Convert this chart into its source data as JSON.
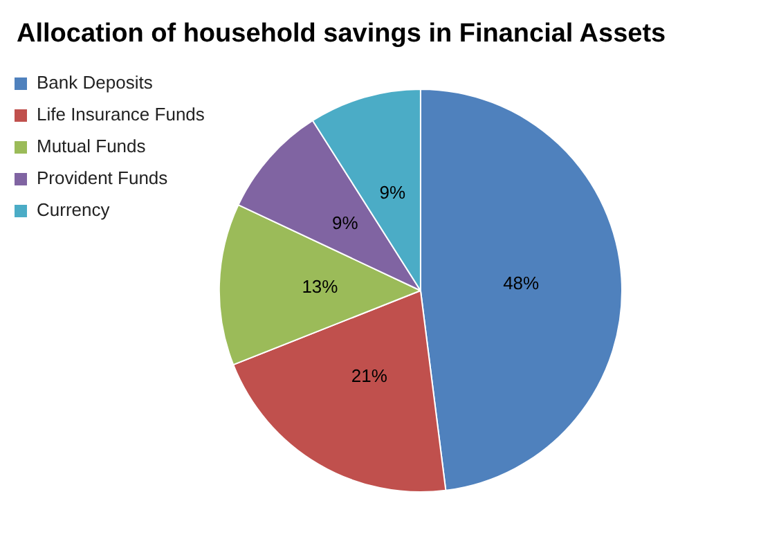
{
  "chart_data": {
    "type": "pie",
    "title": "Allocation of household savings in Financial Assets",
    "categories": [
      "Bank Deposits",
      "Life Insurance Funds",
      "Mutual Funds",
      "Provident Funds",
      "Currency"
    ],
    "values": [
      48,
      21,
      13,
      9,
      9
    ],
    "colors": [
      "#4f81bd",
      "#c0504d",
      "#9bbb59",
      "#8064a2",
      "#4bacc6"
    ],
    "value_labels": [
      "48%",
      "21%",
      "13%",
      "9%",
      "9%"
    ],
    "legend": "top left"
  }
}
